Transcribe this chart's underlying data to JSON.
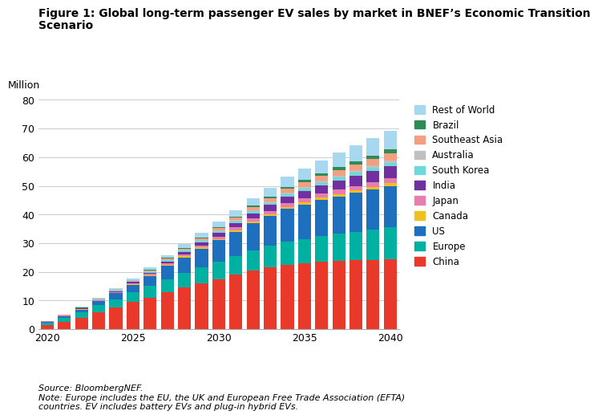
{
  "title_line1": "Figure 1: Global long-term passenger EV sales by market in BNEF’s Economic Transition",
  "title_line2": "Scenario",
  "ylabel": "Million",
  "source_text": "Source: BloombergNEF.\nNote: Europe includes the EU, the UK and European Free Trade Association (EFTA)\ncountries. EV includes battery EVs and plug-in hybrid EVs.",
  "years": [
    2020,
    2021,
    2022,
    2023,
    2024,
    2025,
    2026,
    2027,
    2028,
    2029,
    2030,
    2031,
    2032,
    2033,
    2034,
    2035,
    2036,
    2037,
    2038,
    2039,
    2040
  ],
  "segments": {
    "China": [
      1.5,
      2.5,
      4.0,
      6.0,
      7.5,
      9.5,
      11.0,
      13.0,
      14.5,
      16.0,
      17.5,
      19.0,
      20.5,
      21.5,
      22.5,
      23.0,
      23.5,
      23.8,
      24.0,
      24.2,
      24.5
    ],
    "Europe": [
      0.8,
      1.5,
      2.0,
      2.5,
      3.0,
      3.5,
      4.0,
      4.5,
      5.0,
      5.5,
      6.0,
      6.5,
      7.0,
      7.5,
      8.0,
      8.5,
      9.0,
      9.5,
      10.0,
      10.5,
      11.0
    ],
    "US": [
      0.3,
      0.5,
      0.8,
      1.2,
      2.0,
      2.5,
      3.5,
      4.5,
      5.5,
      6.5,
      7.5,
      8.5,
      9.5,
      10.5,
      11.5,
      12.0,
      12.5,
      13.0,
      13.5,
      14.0,
      14.5
    ],
    "Canada": [
      0.05,
      0.08,
      0.1,
      0.15,
      0.2,
      0.25,
      0.3,
      0.35,
      0.4,
      0.45,
      0.5,
      0.55,
      0.6,
      0.65,
      0.7,
      0.75,
      0.8,
      0.85,
      0.9,
      0.95,
      1.0
    ],
    "Japan": [
      0.05,
      0.1,
      0.15,
      0.2,
      0.25,
      0.3,
      0.4,
      0.5,
      0.6,
      0.7,
      0.8,
      0.9,
      1.0,
      1.1,
      1.2,
      1.3,
      1.4,
      1.5,
      1.6,
      1.7,
      1.8
    ],
    "India": [
      0.02,
      0.05,
      0.1,
      0.15,
      0.25,
      0.35,
      0.5,
      0.7,
      0.9,
      1.1,
      1.3,
      1.5,
      1.8,
      2.1,
      2.4,
      2.7,
      3.0,
      3.3,
      3.6,
      3.9,
      4.2
    ],
    "South Korea": [
      0.05,
      0.1,
      0.15,
      0.2,
      0.25,
      0.3,
      0.35,
      0.4,
      0.45,
      0.5,
      0.55,
      0.6,
      0.65,
      0.7,
      0.75,
      0.8,
      0.85,
      0.9,
      0.95,
      1.0,
      1.05
    ],
    "Australia": [
      0.02,
      0.04,
      0.06,
      0.08,
      0.1,
      0.15,
      0.2,
      0.25,
      0.3,
      0.35,
      0.4,
      0.45,
      0.5,
      0.55,
      0.6,
      0.65,
      0.7,
      0.75,
      0.8,
      0.85,
      0.9
    ],
    "Southeast Asia": [
      0.02,
      0.04,
      0.06,
      0.1,
      0.15,
      0.2,
      0.3,
      0.4,
      0.5,
      0.6,
      0.7,
      0.85,
      1.0,
      1.15,
      1.3,
      1.5,
      1.7,
      1.9,
      2.1,
      2.3,
      2.5
    ],
    "Brazil": [
      0.01,
      0.02,
      0.03,
      0.05,
      0.07,
      0.1,
      0.15,
      0.2,
      0.25,
      0.3,
      0.35,
      0.4,
      0.5,
      0.6,
      0.7,
      0.8,
      0.9,
      1.0,
      1.1,
      1.2,
      1.3
    ],
    "Rest of World": [
      0.1,
      0.2,
      0.3,
      0.4,
      0.5,
      0.6,
      0.8,
      1.0,
      1.2,
      1.5,
      1.8,
      2.2,
      2.6,
      3.0,
      3.5,
      4.0,
      4.5,
      5.0,
      5.5,
      6.0,
      6.5
    ]
  },
  "colors": {
    "China": "#e8392a",
    "Europe": "#00b0a0",
    "US": "#1f6fbf",
    "Canada": "#f0c020",
    "Japan": "#e87db0",
    "India": "#7030a0",
    "South Korea": "#70d8d8",
    "Australia": "#c0c0c0",
    "Southeast Asia": "#f4a080",
    "Brazil": "#2e8b57",
    "Rest of World": "#a8d8f0"
  },
  "stack_order": [
    "China",
    "Europe",
    "US",
    "Canada",
    "Japan",
    "India",
    "South Korea",
    "Australia",
    "Southeast Asia",
    "Brazil",
    "Rest of World"
  ],
  "legend_order": [
    "Rest of World",
    "Brazil",
    "Southeast Asia",
    "Australia",
    "South Korea",
    "India",
    "Japan",
    "Canada",
    "US",
    "Europe",
    "China"
  ],
  "ylim": [
    0,
    80
  ],
  "yticks": [
    0,
    10,
    20,
    30,
    40,
    50,
    60,
    70,
    80
  ],
  "bar_width": 0.75,
  "background_color": "#ffffff"
}
